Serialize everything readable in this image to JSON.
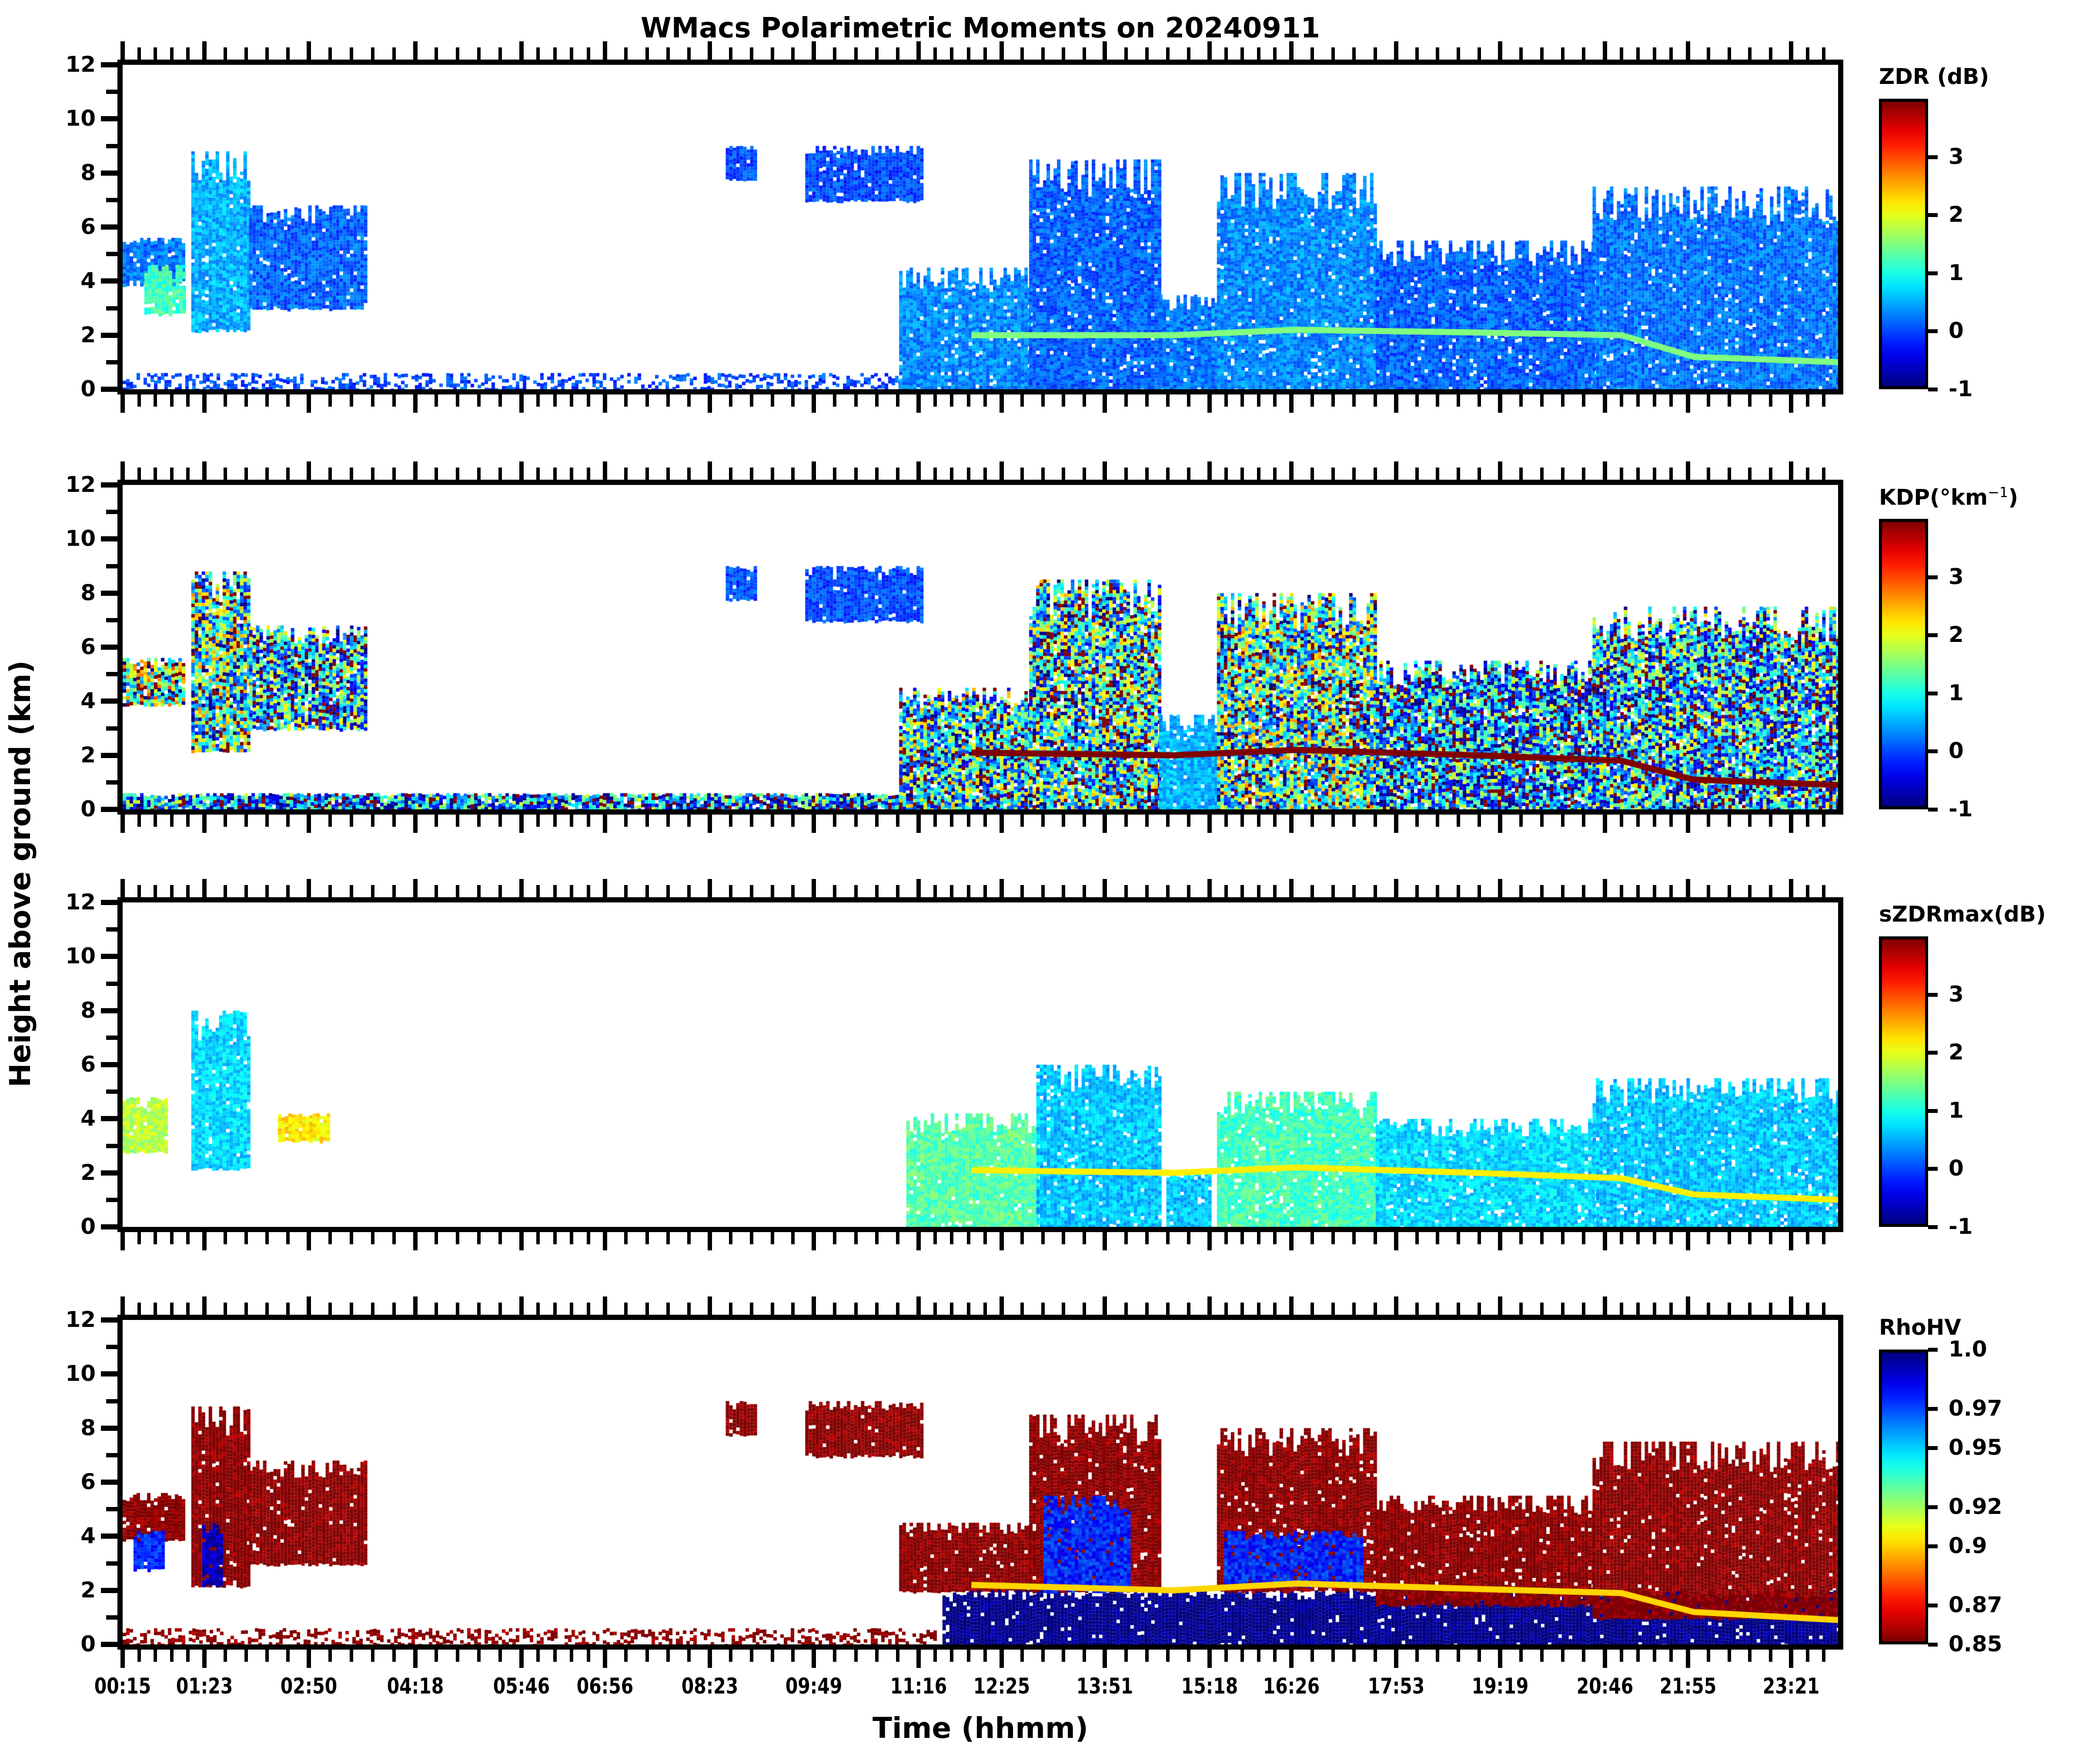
{
  "chart_data": {
    "type": "heatmap",
    "title": "WMacs Polarimetric Moments on 20240911",
    "xlabel": "Time (hhmm)",
    "ylabel": "Height above ground (km)",
    "xlim_hours": [
      0.25,
      24.0
    ],
    "ylim": [
      0,
      12
    ],
    "ytick_values": [
      0,
      2,
      4,
      6,
      8,
      10,
      12
    ],
    "ytick_labels": [
      "0",
      "2",
      "4",
      "6",
      "8",
      "10",
      "12"
    ],
    "yminor_step": 1,
    "xtick_labels": [
      "00:15",
      "01:23",
      "02:50",
      "04:18",
      "05:46",
      "06:56",
      "08:23",
      "09:49",
      "11:16",
      "12:25",
      "13:51",
      "15:18",
      "16:26",
      "17:53",
      "19:19",
      "20:46",
      "21:55",
      "23:21"
    ],
    "xtick_hours": [
      0.25,
      1.38,
      2.83,
      4.3,
      5.77,
      6.93,
      8.38,
      9.82,
      11.27,
      12.42,
      13.85,
      15.3,
      16.43,
      17.88,
      19.32,
      20.77,
      21.92,
      23.35
    ],
    "xminor_per_major": 4,
    "panels": [
      {
        "name": "ZDR",
        "colorbar_label": "ZDR (dB)",
        "colormap": "jet",
        "vmin": -1,
        "vmax": 4,
        "cbar_ticks": [
          -1,
          0,
          1,
          2,
          3
        ],
        "cbar_tick_labels": [
          "-1",
          "0",
          "1",
          "2",
          "3"
        ],
        "background_value": 0.0,
        "regions": [
          {
            "t0": 0.25,
            "t1": 1.1,
            "h0": 3.9,
            "h1": 5.6,
            "v": 0.2
          },
          {
            "t0": 0.55,
            "t1": 1.1,
            "h0": 2.8,
            "h1": 4.6,
            "v": 1.2
          },
          {
            "t0": 1.2,
            "t1": 2.0,
            "h0": 2.2,
            "h1": 8.8,
            "v": 0.5
          },
          {
            "t0": 2.0,
            "t1": 3.6,
            "h0": 3.0,
            "h1": 6.8,
            "v": 0.1
          },
          {
            "t0": 0.25,
            "t1": 11.5,
            "h0": 0.0,
            "h1": 0.6,
            "v": 0.0,
            "sparse": true
          },
          {
            "t0": 8.6,
            "t1": 9.0,
            "h0": 7.8,
            "h1": 9.0,
            "v": 0.0
          },
          {
            "t0": 9.7,
            "t1": 11.3,
            "h0": 7.0,
            "h1": 9.0,
            "v": 0.0
          },
          {
            "t0": 11.0,
            "t1": 12.8,
            "h0": 0.0,
            "h1": 4.5,
            "v": 0.3
          },
          {
            "t0": 12.8,
            "t1": 14.6,
            "h0": 0.0,
            "h1": 8.5,
            "v": 0.1
          },
          {
            "t0": 14.6,
            "t1": 15.4,
            "h0": 0.0,
            "h1": 3.5,
            "v": 0.2
          },
          {
            "t0": 15.4,
            "t1": 17.6,
            "h0": 0.0,
            "h1": 8.0,
            "v": 0.3
          },
          {
            "t0": 17.6,
            "t1": 20.6,
            "h0": 0.0,
            "h1": 5.5,
            "v": 0.1
          },
          {
            "t0": 20.6,
            "t1": 24.0,
            "h0": 0.0,
            "h1": 7.5,
            "v": 0.2
          }
        ],
        "bright_band": [
          {
            "t": 12.0,
            "h": 2.0
          },
          {
            "t": 14.8,
            "h": 2.0
          },
          {
            "t": 16.5,
            "h": 2.2
          },
          {
            "t": 19.0,
            "h": 2.1
          },
          {
            "t": 21.0,
            "h": 2.0
          },
          {
            "t": 22.0,
            "h": 1.2
          },
          {
            "t": 24.0,
            "h": 1.0
          }
        ],
        "bright_band_value": 1.5
      },
      {
        "name": "KDP",
        "colorbar_label": "KDP(°km",
        "colorbar_label_sup": "−1",
        "colorbar_label_end": ")",
        "colormap": "jet",
        "vmin": -1,
        "vmax": 4,
        "cbar_ticks": [
          -1,
          0,
          1,
          2,
          3
        ],
        "cbar_tick_labels": [
          "-1",
          "0",
          "1",
          "2",
          "3"
        ],
        "background_value": 0.0,
        "regions": [
          {
            "t0": 0.25,
            "t1": 1.1,
            "h0": 3.9,
            "h1": 5.6,
            "v": 1.5,
            "noisy": true
          },
          {
            "t0": 1.2,
            "t1": 2.0,
            "h0": 2.2,
            "h1": 8.8,
            "v": 1.2,
            "noisy": true
          },
          {
            "t0": 2.0,
            "t1": 3.6,
            "h0": 3.0,
            "h1": 6.8,
            "v": 0.8,
            "noisy": true
          },
          {
            "t0": 0.25,
            "t1": 11.5,
            "h0": 0.0,
            "h1": 0.6,
            "v": 0.5,
            "noisy": true
          },
          {
            "t0": 8.6,
            "t1": 9.0,
            "h0": 7.8,
            "h1": 9.0,
            "v": 0.0
          },
          {
            "t0": 9.7,
            "t1": 11.3,
            "h0": 7.0,
            "h1": 9.0,
            "v": 0.0
          },
          {
            "t0": 11.0,
            "t1": 12.8,
            "h0": 0.0,
            "h1": 4.5,
            "v": 1.0,
            "noisy": true
          },
          {
            "t0": 12.8,
            "t1": 14.6,
            "h0": 0.0,
            "h1": 8.5,
            "v": 1.0,
            "noisy": true
          },
          {
            "t0": 14.6,
            "t1": 15.4,
            "h0": 0.0,
            "h1": 3.5,
            "v": 0.5
          },
          {
            "t0": 15.4,
            "t1": 17.6,
            "h0": 0.0,
            "h1": 8.0,
            "v": 1.2,
            "noisy": true
          },
          {
            "t0": 17.6,
            "t1": 20.6,
            "h0": 0.0,
            "h1": 5.5,
            "v": 0.6,
            "noisy": true
          },
          {
            "t0": 20.6,
            "t1": 24.0,
            "h0": 0.0,
            "h1": 7.5,
            "v": 0.8,
            "noisy": true
          }
        ],
        "bright_band": [
          {
            "t": 12.0,
            "h": 2.1
          },
          {
            "t": 14.8,
            "h": 2.0
          },
          {
            "t": 16.5,
            "h": 2.2
          },
          {
            "t": 19.0,
            "h": 2.0
          },
          {
            "t": 21.0,
            "h": 1.8
          },
          {
            "t": 22.0,
            "h": 1.1
          },
          {
            "t": 24.0,
            "h": 0.9
          }
        ],
        "bright_band_value": 4.0
      },
      {
        "name": "sZDRmax",
        "colorbar_label": "sZDRmax(dB)",
        "colormap": "jet",
        "vmin": -1,
        "vmax": 4,
        "cbar_ticks": [
          -1,
          0,
          1,
          2,
          3
        ],
        "cbar_tick_labels": [
          "-1",
          "0",
          "1",
          "2",
          "3"
        ],
        "background_value": 0.6,
        "regions": [
          {
            "t0": 0.25,
            "t1": 0.85,
            "h0": 2.8,
            "h1": 4.8,
            "v": 1.8
          },
          {
            "t0": 1.2,
            "t1": 2.0,
            "h0": 2.2,
            "h1": 8.0,
            "v": 0.7
          },
          {
            "t0": 2.4,
            "t1": 3.1,
            "h0": 3.2,
            "h1": 4.2,
            "v": 2.2
          },
          {
            "t0": 11.1,
            "t1": 12.9,
            "h0": 0.0,
            "h1": 4.2,
            "v": 1.3
          },
          {
            "t0": 12.9,
            "t1": 14.6,
            "h0": 0.0,
            "h1": 6.0,
            "v": 0.6
          },
          {
            "t0": 14.7,
            "t1": 15.3,
            "h0": 0.0,
            "h1": 2.0,
            "v": 0.6
          },
          {
            "t0": 15.4,
            "t1": 17.6,
            "h0": 0.0,
            "h1": 5.0,
            "v": 1.2
          },
          {
            "t0": 17.6,
            "t1": 20.6,
            "h0": 0.0,
            "h1": 4.0,
            "v": 0.7
          },
          {
            "t0": 20.6,
            "t1": 24.0,
            "h0": 0.0,
            "h1": 5.5,
            "v": 0.6
          }
        ],
        "bright_band": [
          {
            "t": 12.0,
            "h": 2.1
          },
          {
            "t": 14.8,
            "h": 2.0
          },
          {
            "t": 16.5,
            "h": 2.2
          },
          {
            "t": 19.0,
            "h": 2.0
          },
          {
            "t": 21.0,
            "h": 1.8
          },
          {
            "t": 22.0,
            "h": 1.2
          },
          {
            "t": 24.0,
            "h": 1.0
          }
        ],
        "bright_band_value": 2.2
      },
      {
        "name": "RhoHV",
        "colorbar_label": "RhoHV",
        "colormap": "jet_r",
        "vmin": 0.85,
        "vmax": 1.0,
        "cbar_ticks": [
          0.85,
          0.87,
          0.9,
          0.92,
          0.95,
          0.97,
          1.0
        ],
        "cbar_tick_labels": [
          "0.85",
          "0.87",
          "0.9",
          "0.92",
          "0.95",
          "0.97",
          "1.0"
        ],
        "background_value": 0.85,
        "regions": [
          {
            "t0": 0.25,
            "t1": 1.1,
            "h0": 3.9,
            "h1": 5.6,
            "v": 0.85
          },
          {
            "t0": 0.4,
            "t1": 0.8,
            "h0": 2.8,
            "h1": 4.2,
            "v": 0.975
          },
          {
            "t0": 1.2,
            "t1": 2.0,
            "h0": 2.2,
            "h1": 8.8,
            "v": 0.85
          },
          {
            "t0": 1.35,
            "t1": 1.6,
            "h0": 2.2,
            "h1": 4.5,
            "v": 0.99
          },
          {
            "t0": 2.0,
            "t1": 3.6,
            "h0": 3.0,
            "h1": 6.8,
            "v": 0.85
          },
          {
            "t0": 0.25,
            "t1": 11.5,
            "h0": 0.0,
            "h1": 0.6,
            "v": 0.85,
            "sparse": true
          },
          {
            "t0": 8.6,
            "t1": 9.0,
            "h0": 7.8,
            "h1": 9.0,
            "v": 0.85
          },
          {
            "t0": 9.7,
            "t1": 11.3,
            "h0": 7.0,
            "h1": 9.0,
            "v": 0.85
          },
          {
            "t0": 11.0,
            "t1": 12.8,
            "h0": 2.0,
            "h1": 4.5,
            "v": 0.85
          },
          {
            "t0": 11.6,
            "t1": 24.0,
            "h0": 0.0,
            "h1": 2.0,
            "v": 1.0
          },
          {
            "t0": 12.8,
            "t1": 14.6,
            "h0": 2.0,
            "h1": 8.5,
            "v": 0.85
          },
          {
            "t0": 13.0,
            "t1": 14.2,
            "h0": 2.0,
            "h1": 5.5,
            "v": 0.975
          },
          {
            "t0": 15.4,
            "t1": 17.6,
            "h0": 2.0,
            "h1": 8.0,
            "v": 0.85
          },
          {
            "t0": 15.5,
            "t1": 17.4,
            "h0": 2.2,
            "h1": 4.2,
            "v": 0.975
          },
          {
            "t0": 17.6,
            "t1": 20.6,
            "h0": 1.5,
            "h1": 5.5,
            "v": 0.85
          },
          {
            "t0": 20.6,
            "t1": 24.0,
            "h0": 1.0,
            "h1": 7.5,
            "v": 0.85
          }
        ],
        "bright_band": [
          {
            "t": 12.0,
            "h": 2.2
          },
          {
            "t": 14.8,
            "h": 2.0
          },
          {
            "t": 16.5,
            "h": 2.25
          },
          {
            "t": 19.0,
            "h": 2.05
          },
          {
            "t": 21.0,
            "h": 1.9
          },
          {
            "t": 22.0,
            "h": 1.2
          },
          {
            "t": 24.0,
            "h": 0.9
          }
        ],
        "bright_band_value": 0.9
      }
    ]
  }
}
